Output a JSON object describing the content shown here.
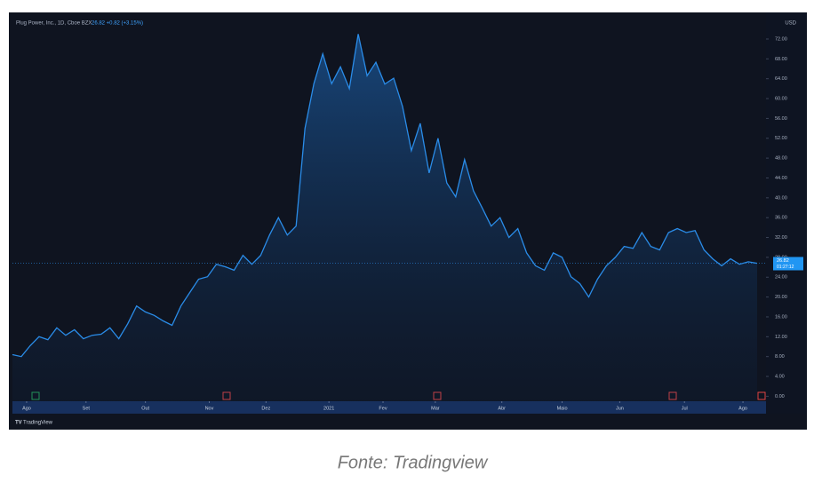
{
  "chart_data": {
    "type": "area",
    "title": "Plug Power, Inc., 1D, Cboe BZX",
    "quote": "26.82 +0.82 (+3.15%)",
    "currency": "USD",
    "last_price": 26.82,
    "last_price_label": "26.82",
    "countdown": "01:27:12",
    "brand": "TradingView",
    "caption": "Fonte: Tradingview",
    "color": "#2a8ce8",
    "values": [
      8.4,
      8,
      10.2,
      12,
      11.4,
      13.8,
      12.3,
      13.4,
      11.6,
      12.3,
      12.5,
      13.8,
      11.6,
      14.6,
      18.2,
      17,
      16.3,
      15.2,
      14.3,
      18.2,
      20.9,
      23.6,
      24.1,
      26.6,
      26.1,
      25.4,
      28.4,
      26.6,
      28.4,
      32.5,
      36,
      32.5,
      34.3,
      54,
      63,
      69,
      63,
      66.4,
      62,
      73,
      64.6,
      67.3,
      62.9,
      64.1,
      58.4,
      49.5,
      55,
      45,
      52,
      43,
      40.2,
      47.7,
      41.4,
      37.9,
      34.3,
      36,
      32,
      33.8,
      28.9,
      26.3,
      25.4,
      28.9,
      28,
      24.1,
      22.7,
      20,
      23.6,
      26.3,
      28,
      30.2,
      29.8,
      33,
      30.2,
      29.5,
      33,
      33.8,
      33,
      33.4,
      29.5,
      27.7,
      26.3,
      27.7,
      26.6,
      27.1,
      26.8
    ],
    "xlim": [
      0,
      85
    ],
    "xticks": [
      {
        "value": 1.6,
        "label": "Ago"
      },
      {
        "value": 8.3,
        "label": "Set"
      },
      {
        "value": 15,
        "label": "Out"
      },
      {
        "value": 22.2,
        "label": "Nov"
      },
      {
        "value": 28.6,
        "label": "Dez"
      },
      {
        "value": 35.7,
        "label": "2021"
      },
      {
        "value": 41.8,
        "label": "Fev"
      },
      {
        "value": 47.7,
        "label": "Mar"
      },
      {
        "value": 55.2,
        "label": "Abr"
      },
      {
        "value": 62,
        "label": "Maio"
      },
      {
        "value": 68.5,
        "label": "Jun"
      },
      {
        "value": 75.8,
        "label": "Jul"
      },
      {
        "value": 82.4,
        "label": "Ago"
      }
    ],
    "ylim": [
      -1,
      74.5
    ],
    "yticks": [
      {
        "value": 0,
        "label": "0.00"
      },
      {
        "value": 4,
        "label": "4.00"
      },
      {
        "value": 8,
        "label": "8.00"
      },
      {
        "value": 12,
        "label": "12.00"
      },
      {
        "value": 16,
        "label": "16.00"
      },
      {
        "value": 20,
        "label": "20.00"
      },
      {
        "value": 24,
        "label": "24.00"
      },
      {
        "value": 28,
        "label": "28.00"
      },
      {
        "value": 32,
        "label": "32.00"
      },
      {
        "value": 36,
        "label": "36.00"
      },
      {
        "value": 40,
        "label": "40.00"
      },
      {
        "value": 44,
        "label": "44.00"
      },
      {
        "value": 48,
        "label": "48.00"
      },
      {
        "value": 52,
        "label": "52.00"
      },
      {
        "value": 56,
        "label": "56.00"
      },
      {
        "value": 60,
        "label": "60.00"
      },
      {
        "value": 64,
        "label": "64.00"
      },
      {
        "value": 68,
        "label": "68.00"
      },
      {
        "value": 72,
        "label": "72.00"
      }
    ]
  }
}
